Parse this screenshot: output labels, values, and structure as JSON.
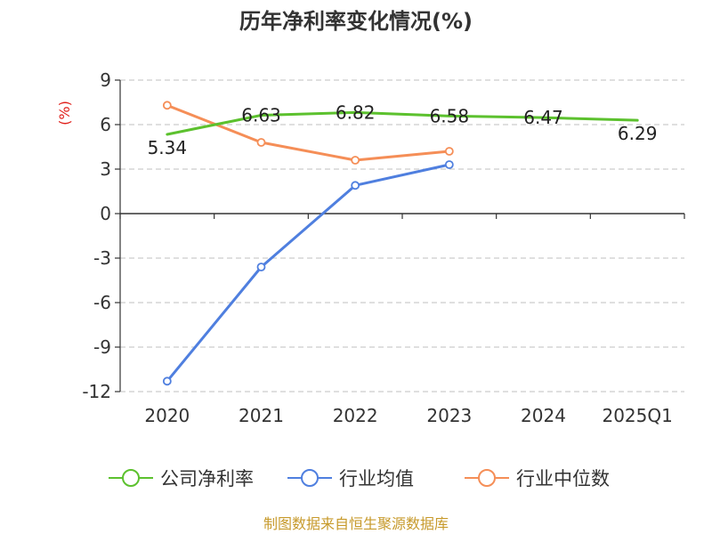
{
  "title": "历年净利率变化情况(%)",
  "source_text": "制图数据来自恒生聚源数据库",
  "colors": {
    "company": "#5cc12e",
    "avg": "#4f7fdf",
    "median": "#f58e57",
    "ylabel": "#e0201b",
    "source": "#c79a2c",
    "grid": "#cccccc",
    "axis": "#333333"
  },
  "chart_data": {
    "type": "line",
    "title": "历年净利率变化情况(%)",
    "ylabel": "(%)",
    "xlabel": "",
    "categories": [
      "2020",
      "2021",
      "2022",
      "2023",
      "2024",
      "2025Q1"
    ],
    "ylim": [
      -12,
      9
    ],
    "yticks": [
      9,
      6,
      3,
      0,
      -3,
      -6,
      -9,
      -12
    ],
    "grid": true,
    "legend_position": "bottom",
    "series": [
      {
        "name": "公司净利率",
        "values": [
          5.34,
          6.63,
          6.82,
          6.58,
          6.47,
          6.29
        ],
        "labels": [
          "5.34",
          "6.63",
          "6.82",
          "6.58",
          "6.47",
          "6.29"
        ]
      },
      {
        "name": "行业均值",
        "values": [
          -11.3,
          -3.6,
          1.9,
          3.3,
          null,
          null
        ]
      },
      {
        "name": "行业中位数",
        "values": [
          7.3,
          4.8,
          3.6,
          4.2,
          null,
          null
        ]
      }
    ]
  }
}
